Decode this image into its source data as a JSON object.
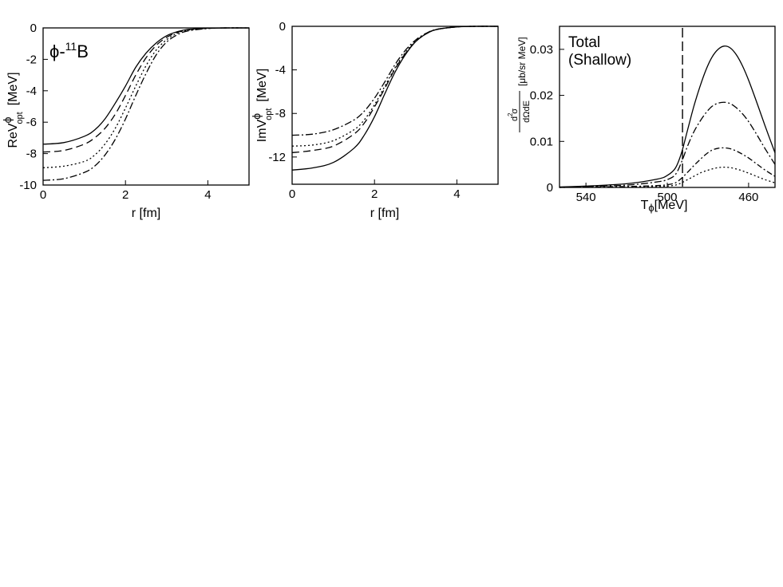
{
  "chart_data": [
    {
      "type": "line",
      "annotation": "ϕ-¹¹B",
      "annotation_parts": {
        "base": "ϕ-",
        "sup": "11",
        "after": "B"
      },
      "xlabel": "r [fm]",
      "ylabel_parts": {
        "main": "ReV",
        "sup": "ϕ",
        "sub": "opt",
        "unit": "[MeV]"
      },
      "xlim": [
        0,
        5
      ],
      "ylim": [
        -10,
        0
      ],
      "xticks": [
        0,
        2,
        4
      ],
      "yticks": [
        0,
        -2,
        -4,
        -6,
        -8,
        -10
      ],
      "grid": false,
      "series": [
        {
          "style": "solid",
          "x": [
            0,
            0.5,
            1,
            1.25,
            1.5,
            1.75,
            2,
            2.25,
            2.5,
            2.75,
            3,
            3.25,
            3.5,
            4,
            4.5,
            5
          ],
          "y": [
            -7.4,
            -7.3,
            -6.9,
            -6.5,
            -5.8,
            -4.8,
            -3.7,
            -2.5,
            -1.6,
            -0.95,
            -0.5,
            -0.25,
            -0.1,
            -0.02,
            0,
            0
          ]
        },
        {
          "style": "dashed",
          "x": [
            0,
            0.5,
            1,
            1.25,
            1.5,
            1.75,
            2,
            2.25,
            2.5,
            2.75,
            3,
            3.25,
            3.5,
            4,
            4.5,
            5
          ],
          "y": [
            -7.9,
            -7.8,
            -7.4,
            -7.0,
            -6.4,
            -5.5,
            -4.3,
            -3.0,
            -1.9,
            -1.1,
            -0.6,
            -0.3,
            -0.12,
            -0.02,
            0,
            0
          ]
        },
        {
          "style": "dotted",
          "x": [
            0,
            0.5,
            1,
            1.25,
            1.5,
            1.75,
            2,
            2.25,
            2.5,
            2.75,
            3,
            3.25,
            3.5,
            4,
            4.5,
            5
          ],
          "y": [
            -8.9,
            -8.8,
            -8.5,
            -8.1,
            -7.4,
            -6.4,
            -5.1,
            -3.7,
            -2.4,
            -1.4,
            -0.75,
            -0.35,
            -0.15,
            -0.03,
            0,
            0
          ]
        },
        {
          "style": "dash-dot",
          "x": [
            0,
            0.5,
            1,
            1.25,
            1.5,
            1.75,
            2,
            2.25,
            2.5,
            2.75,
            3,
            3.25,
            3.5,
            4,
            4.5,
            5
          ],
          "y": [
            -9.7,
            -9.6,
            -9.2,
            -8.8,
            -8.1,
            -7.1,
            -5.8,
            -4.3,
            -2.9,
            -1.7,
            -0.9,
            -0.45,
            -0.2,
            -0.04,
            0,
            0
          ]
        }
      ]
    },
    {
      "type": "line",
      "xlabel": "r [fm]",
      "ylabel_parts": {
        "main": "ImV",
        "sup": "ϕ",
        "sub": "opt",
        "unit": "[MeV]"
      },
      "xlim": [
        0,
        5
      ],
      "ylim": [
        -14.5,
        0
      ],
      "xticks": [
        0,
        2,
        4
      ],
      "yticks": [
        0,
        -4,
        -8,
        -12
      ],
      "grid": false,
      "series": [
        {
          "style": "solid",
          "x": [
            0,
            0.5,
            1,
            1.5,
            1.75,
            2,
            2.25,
            2.5,
            2.75,
            3,
            3.25,
            3.5,
            4,
            4.5,
            5
          ],
          "y": [
            -13.2,
            -13.0,
            -12.5,
            -11.2,
            -10.0,
            -8.3,
            -6.2,
            -4.2,
            -2.6,
            -1.4,
            -0.7,
            -0.3,
            -0.05,
            0,
            0
          ]
        },
        {
          "style": "dashed",
          "x": [
            0,
            0.5,
            1,
            1.5,
            1.75,
            2,
            2.25,
            2.5,
            2.75,
            3,
            3.25,
            3.5,
            4,
            4.5,
            5
          ],
          "y": [
            -11.6,
            -11.4,
            -11.0,
            -9.9,
            -8.9,
            -7.4,
            -5.7,
            -3.9,
            -2.5,
            -1.4,
            -0.7,
            -0.3,
            -0.05,
            0,
            0
          ]
        },
        {
          "style": "dotted",
          "x": [
            0,
            0.5,
            1,
            1.5,
            1.75,
            2,
            2.25,
            2.5,
            2.75,
            3,
            3.25,
            3.5,
            4,
            4.5,
            5
          ],
          "y": [
            -11.0,
            -10.9,
            -10.5,
            -9.5,
            -8.6,
            -7.2,
            -5.5,
            -3.8,
            -2.4,
            -1.35,
            -0.7,
            -0.3,
            -0.05,
            0,
            0
          ]
        },
        {
          "style": "dash-dot",
          "x": [
            0,
            0.5,
            1,
            1.5,
            1.75,
            2,
            2.25,
            2.5,
            2.75,
            3,
            3.25,
            3.5,
            4,
            4.5,
            5
          ],
          "y": [
            -10.0,
            -9.9,
            -9.5,
            -8.6,
            -7.8,
            -6.6,
            -5.1,
            -3.5,
            -2.2,
            -1.25,
            -0.65,
            -0.28,
            -0.05,
            0,
            0
          ]
        }
      ]
    },
    {
      "type": "line",
      "annotation_lines": [
        "Total",
        "(Shallow)"
      ],
      "xlabel_parts": {
        "main": "T",
        "sub": "ϕ",
        "unit": "[MeV]"
      },
      "ylabel_parts": {
        "num_sup": "2",
        "num": "d σ",
        "den": "dΩdE",
        "unit": "[μb/sr MeV]"
      },
      "xlim": [
        553,
        447
      ],
      "ylim": [
        0,
        0.035
      ],
      "xticks": [
        540,
        500,
        460
      ],
      "yticks": [
        0,
        0.01,
        0.02,
        0.03
      ],
      "ytick_labels": [
        "0",
        "0.01",
        "0.02",
        "0.03"
      ],
      "threshold_x": 492.5,
      "grid": false,
      "series": [
        {
          "style": "solid",
          "x": [
            553,
            540,
            520,
            505,
            500,
            496,
            493,
            490,
            487,
            484,
            481,
            478,
            475,
            472,
            469,
            466,
            463,
            460,
            456,
            452,
            447
          ],
          "y": [
            0.0001,
            0.0003,
            0.0008,
            0.0018,
            0.0026,
            0.0042,
            0.0075,
            0.0125,
            0.0175,
            0.0218,
            0.0255,
            0.0283,
            0.03,
            0.0307,
            0.0303,
            0.0288,
            0.0264,
            0.0233,
            0.0185,
            0.0135,
            0.0075
          ]
        },
        {
          "style": "dash-dot",
          "x": [
            553,
            540,
            520,
            505,
            500,
            496,
            493,
            490,
            487,
            484,
            481,
            478,
            475,
            472,
            469,
            466,
            463,
            460,
            456,
            452,
            447
          ],
          "y": [
            5e-05,
            0.0002,
            0.0005,
            0.0012,
            0.0017,
            0.0028,
            0.0055,
            0.009,
            0.012,
            0.0143,
            0.0162,
            0.0176,
            0.0183,
            0.0185,
            0.0182,
            0.0173,
            0.016,
            0.0143,
            0.0115,
            0.0085,
            0.005
          ]
        },
        {
          "style": "dash-dot-2",
          "x": [
            553,
            540,
            520,
            505,
            500,
            496,
            493,
            490,
            487,
            484,
            481,
            478,
            475,
            472,
            469,
            466,
            463,
            460,
            456,
            452,
            447
          ],
          "y": [
            0,
            0.0001,
            0.0002,
            0.0004,
            0.0006,
            0.001,
            0.002,
            0.0033,
            0.0047,
            0.006,
            0.0072,
            0.0081,
            0.0085,
            0.0086,
            0.0084,
            0.0079,
            0.0072,
            0.0064,
            0.0051,
            0.0038,
            0.0024
          ]
        },
        {
          "style": "dotted",
          "x": [
            553,
            540,
            520,
            505,
            500,
            496,
            493,
            490,
            487,
            484,
            481,
            478,
            475,
            472,
            469,
            466,
            463,
            460,
            456,
            452,
            447
          ],
          "y": [
            0,
            5e-05,
            0.0001,
            0.0002,
            0.0003,
            0.0005,
            0.001,
            0.0017,
            0.0024,
            0.0031,
            0.0036,
            0.004,
            0.0043,
            0.0044,
            0.0043,
            0.004,
            0.0036,
            0.0031,
            0.0024,
            0.0017,
            0.001
          ]
        }
      ]
    }
  ]
}
